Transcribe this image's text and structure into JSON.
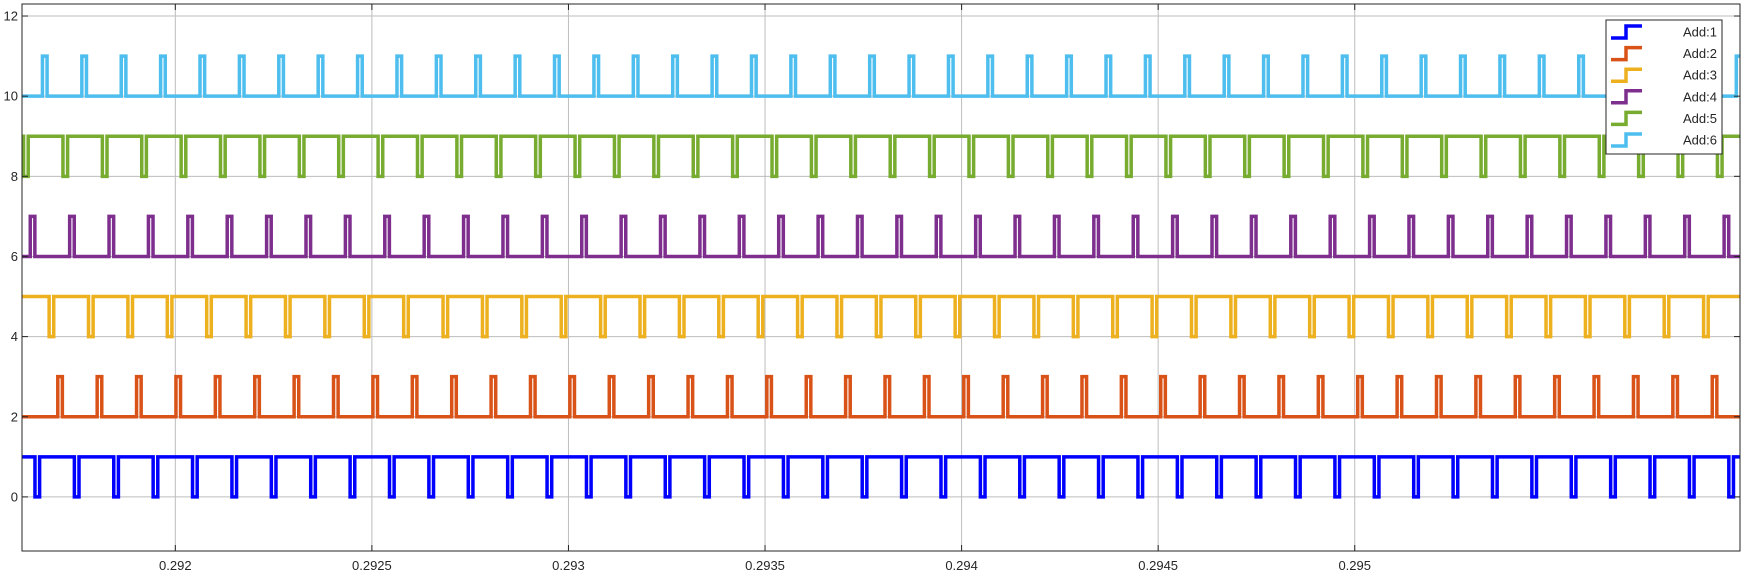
{
  "chart_data": {
    "type": "line",
    "title": "",
    "xlabel": "",
    "ylabel": "",
    "xlim": [
      0.29161,
      0.29598
    ],
    "ylim": [
      -1.35,
      12.3
    ],
    "xticks": [
      0.292,
      0.2925,
      0.293,
      0.2935,
      0.294,
      0.2945,
      0.295
    ],
    "xtick_labels": [
      "0.292",
      "0.2925",
      "0.293",
      "0.2935",
      "0.294",
      "0.2945",
      "0.295"
    ],
    "yticks": [
      0,
      2,
      4,
      6,
      8,
      10,
      12
    ],
    "ytick_labels": [
      "0",
      "2",
      "4",
      "6",
      "8",
      "10",
      "12"
    ],
    "grid": true,
    "legend_position": "top-right",
    "series": [
      {
        "name": "Add:1",
        "color": "#0000FF",
        "high": 1,
        "low": 0,
        "pulse_state": "low",
        "pulse_width": 1.18e-05,
        "first_pulse_start": 0.291643,
        "pulse_period": 0.0001002,
        "last_pulse_start": 0.29595
      },
      {
        "name": "Add:2",
        "color": "#D95319",
        "high": 3,
        "low": 2,
        "pulse_state": "high",
        "pulse_width": 1.17e-05,
        "first_pulse_start": 0.291701,
        "pulse_period": 0.0001002,
        "last_pulse_start": 0.29591
      },
      {
        "name": "Add:3",
        "color": "#EDB120",
        "high": 5,
        "low": 4,
        "pulse_state": "low",
        "pulse_width": 1.17e-05,
        "first_pulse_start": 0.291679,
        "pulse_period": 0.0001002,
        "last_pulse_start": 0.295966
      },
      {
        "name": "Add:4",
        "color": "#7E2F8E",
        "high": 7,
        "low": 6,
        "pulse_state": "high",
        "pulse_width": 1.17e-05,
        "first_pulse_start": 0.291631,
        "pulse_period": 0.0001002,
        "last_pulse_start": 0.295942
      },
      {
        "name": "Add:5",
        "color": "#77AC30",
        "high": 9,
        "low": 8,
        "pulse_state": "low",
        "pulse_width": 1.18e-05,
        "first_pulse_start": 0.291614,
        "pulse_period": 0.0001002,
        "last_pulse_start": 0.295923
      },
      {
        "name": "Add:6",
        "color": "#4DBEEE",
        "high": 11,
        "low": 10,
        "pulse_state": "high",
        "pulse_width": 1.18e-05,
        "first_pulse_start": 0.291662,
        "pulse_period": 0.0001002,
        "last_pulse_start": 0.295971
      }
    ]
  }
}
